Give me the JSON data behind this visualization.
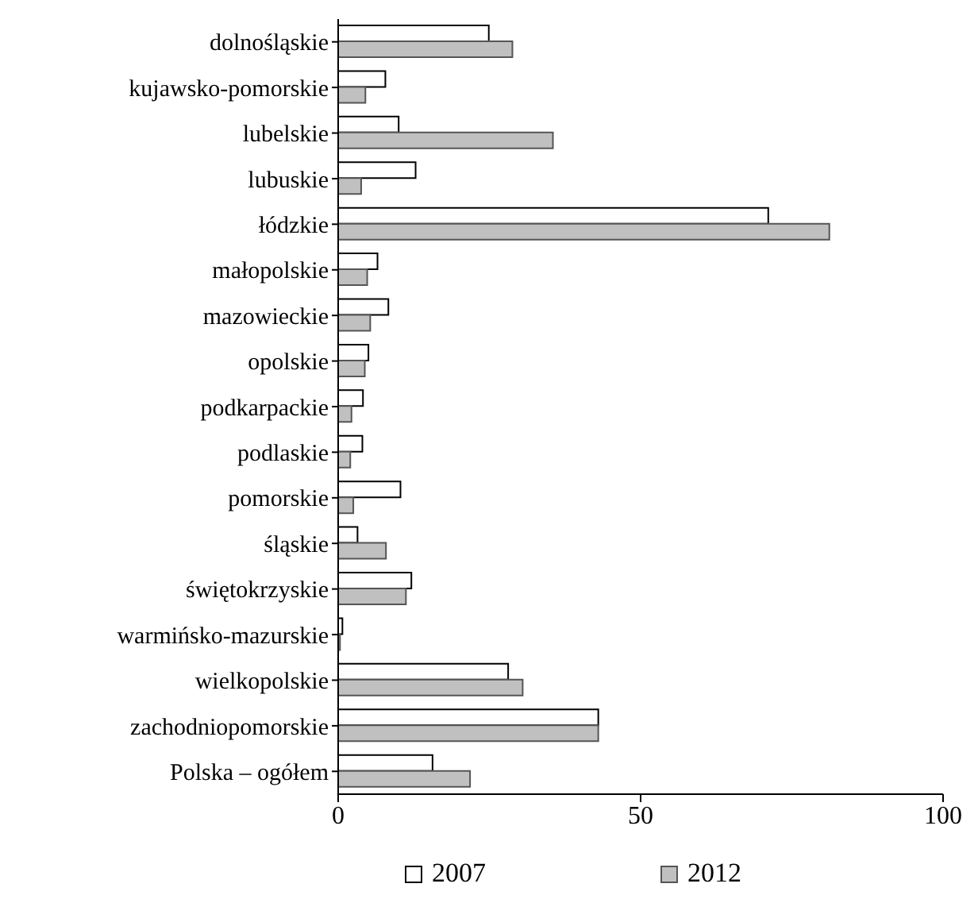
{
  "chart_data": {
    "type": "bar",
    "orientation": "horizontal",
    "categories": [
      "dolnośląskie",
      "kujawsko-pomorskie",
      "lubelskie",
      "lubuskie",
      "łódzkie",
      "małopolskie",
      "mazowieckie",
      "opolskie",
      "podkarpackie",
      "podlaskie",
      "pomorskie",
      "śląskie",
      "świętokrzyskie",
      "warmińsko-mazurskie",
      "wielkopolskie",
      "zachodniopomorskie",
      "Polska – ogółem"
    ],
    "series": [
      {
        "name": "2007",
        "color": "#ffffff",
        "values": [
          24.9,
          7.8,
          10,
          12.8,
          71.1,
          6.5,
          8.3,
          5,
          4.1,
          4,
          10.3,
          3.2,
          12.1,
          0.7,
          28.1,
          43,
          15.6
        ]
      },
      {
        "name": "2012",
        "color": "#c0c0c0",
        "values": [
          28.8,
          4.5,
          35.5,
          3.8,
          81.2,
          4.8,
          5.3,
          4.4,
          2.2,
          2,
          2.5,
          7.9,
          11.2,
          0.3,
          30.5,
          43,
          21.8
        ]
      }
    ],
    "xlim": [
      0,
      100
    ],
    "xticks": [
      0,
      50,
      100
    ],
    "grid": false,
    "legend": "bottom"
  }
}
